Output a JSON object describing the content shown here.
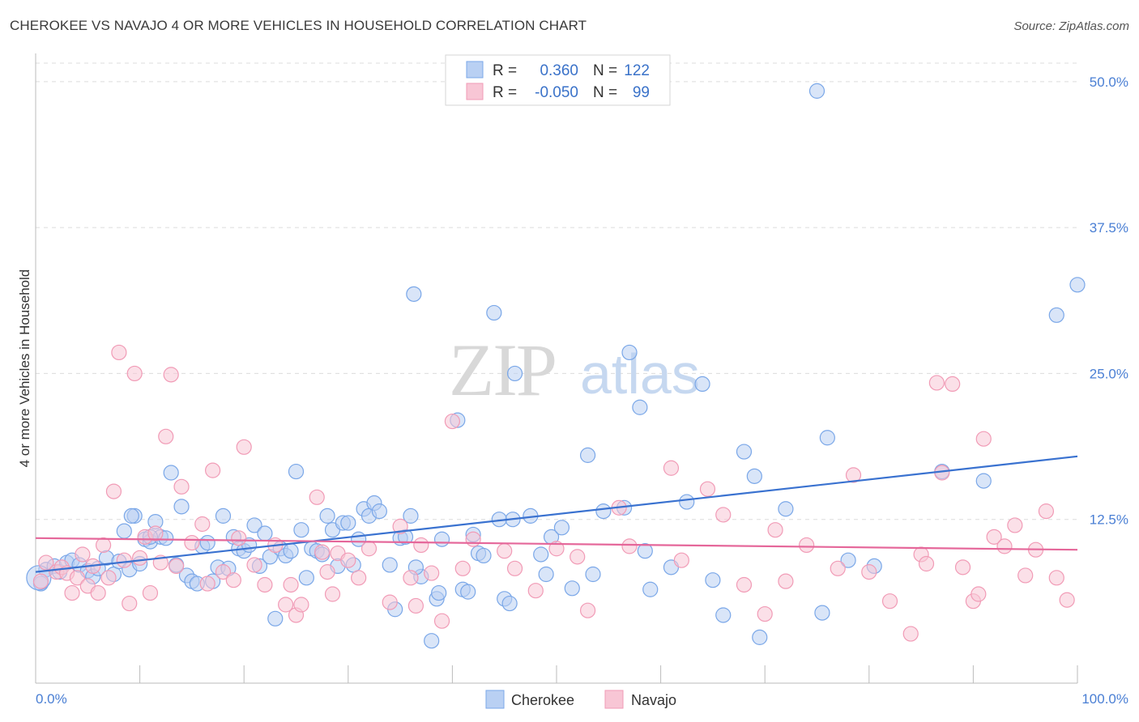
{
  "title": "CHEROKEE VS NAVAJO 4 OR MORE VEHICLES IN HOUSEHOLD CORRELATION CHART",
  "source": "Source: ZipAtlas.com",
  "watermark": {
    "part1": "ZIP",
    "part2": "atlas"
  },
  "legend_box": {
    "rows": [
      {
        "r_label": "R =",
        "r_value": "0.360",
        "n_label": "N =",
        "n_value": "122"
      },
      {
        "r_label": "R =",
        "r_value": "-0.050",
        "n_label": "N =",
        "n_value": "99"
      }
    ]
  },
  "chart_data": {
    "type": "scatter",
    "title": "CHEROKEE VS NAVAJO 4 OR MORE VEHICLES IN HOUSEHOLD CORRELATION CHART",
    "xlabel": "",
    "ylabel": "4 or more Vehicles in Household",
    "xlim": [
      0,
      100
    ],
    "ylim": [
      0,
      52
    ],
    "x_tick_labels": [
      "0.0%",
      "100.0%"
    ],
    "y_ticks": [
      12.5,
      25.0,
      37.5,
      50.0
    ],
    "y_tick_labels": [
      "12.5%",
      "25.0%",
      "37.5%",
      "50.0%"
    ],
    "grid": true,
    "legend_position": "bottom",
    "series": [
      {
        "name": "Cherokee",
        "color": "#7aa7e8",
        "fill": "#b9d0f3",
        "trend": {
          "x": [
            0,
            100
          ],
          "y": [
            8.0,
            17.9
          ]
        },
        "points": [
          [
            0.5,
            7.0
          ],
          [
            1.0,
            8.2
          ],
          [
            1.8,
            8.5
          ],
          [
            2.3,
            8.0
          ],
          [
            3.0,
            8.8
          ],
          [
            3.5,
            9.0
          ],
          [
            4.2,
            8.6
          ],
          [
            5.0,
            8.1
          ],
          [
            5.5,
            7.6
          ],
          [
            6.0,
            8.3
          ],
          [
            6.8,
            9.2
          ],
          [
            7.5,
            7.8
          ],
          [
            8.0,
            8.9
          ],
          [
            8.5,
            11.5
          ],
          [
            9.0,
            8.2
          ],
          [
            9.5,
            12.8
          ],
          [
            10.0,
            8.7
          ],
          [
            10.5,
            10.8
          ],
          [
            11.0,
            10.6
          ],
          [
            11.5,
            12.3
          ],
          [
            12.0,
            11.0
          ],
          [
            12.5,
            10.9
          ],
          [
            13.0,
            16.5
          ],
          [
            13.5,
            8.6
          ],
          [
            14.0,
            13.6
          ],
          [
            14.5,
            7.7
          ],
          [
            15.0,
            7.2
          ],
          [
            15.5,
            7.0
          ],
          [
            16.0,
            10.2
          ],
          [
            16.5,
            10.5
          ],
          [
            17.0,
            7.2
          ],
          [
            17.5,
            8.4
          ],
          [
            18.0,
            12.8
          ],
          [
            18.5,
            8.3
          ],
          [
            19.0,
            11.0
          ],
          [
            19.5,
            10.0
          ],
          [
            20.0,
            9.8
          ],
          [
            20.5,
            10.3
          ],
          [
            21.0,
            12.0
          ],
          [
            21.5,
            8.5
          ],
          [
            22.0,
            11.3
          ],
          [
            22.5,
            9.3
          ],
          [
            23.0,
            4.0
          ],
          [
            23.5,
            10.0
          ],
          [
            24.0,
            9.4
          ],
          [
            24.5,
            9.8
          ],
          [
            25.0,
            16.6
          ],
          [
            25.5,
            11.6
          ],
          [
            26.0,
            7.5
          ],
          [
            26.5,
            10.0
          ],
          [
            27.0,
            9.8
          ],
          [
            27.5,
            9.5
          ],
          [
            28.0,
            12.8
          ],
          [
            28.5,
            11.6
          ],
          [
            29.0,
            8.5
          ],
          [
            29.5,
            12.2
          ],
          [
            30.0,
            12.2
          ],
          [
            30.5,
            8.6
          ],
          [
            31.0,
            10.8
          ],
          [
            31.5,
            13.4
          ],
          [
            32.0,
            12.8
          ],
          [
            32.5,
            13.9
          ],
          [
            33.0,
            13.2
          ],
          [
            34.0,
            8.6
          ],
          [
            34.5,
            4.8
          ],
          [
            35.0,
            10.9
          ],
          [
            35.5,
            11.0
          ],
          [
            36.0,
            12.8
          ],
          [
            36.3,
            31.8
          ],
          [
            37.0,
            7.6
          ],
          [
            36.5,
            8.4
          ],
          [
            38.0,
            2.1
          ],
          [
            38.5,
            5.7
          ],
          [
            38.7,
            6.2
          ],
          [
            39.0,
            10.8
          ],
          [
            40.5,
            21.0
          ],
          [
            41.0,
            6.5
          ],
          [
            41.5,
            6.3
          ],
          [
            42.0,
            11.2
          ],
          [
            42.5,
            9.6
          ],
          [
            43.0,
            9.4
          ],
          [
            44.0,
            30.2
          ],
          [
            45.0,
            5.7
          ],
          [
            45.5,
            5.3
          ],
          [
            45.8,
            12.5
          ],
          [
            46.0,
            25.0
          ],
          [
            47.5,
            12.8
          ],
          [
            48.5,
            9.5
          ],
          [
            49.0,
            7.8
          ],
          [
            49.5,
            11.0
          ],
          [
            50.5,
            11.8
          ],
          [
            51.5,
            6.6
          ],
          [
            53.0,
            18.0
          ],
          [
            53.5,
            7.8
          ],
          [
            54.5,
            13.2
          ],
          [
            56.5,
            13.5
          ],
          [
            57.0,
            26.8
          ],
          [
            58.0,
            22.1
          ],
          [
            58.5,
            9.8
          ],
          [
            59.0,
            6.5
          ],
          [
            61.0,
            8.4
          ],
          [
            62.5,
            14.0
          ],
          [
            64.0,
            24.1
          ],
          [
            65.0,
            7.3
          ],
          [
            66.0,
            4.3
          ],
          [
            68.0,
            18.3
          ],
          [
            69.0,
            16.2
          ],
          [
            69.5,
            2.4
          ],
          [
            72.0,
            13.4
          ],
          [
            75.5,
            4.5
          ],
          [
            75.0,
            49.2
          ],
          [
            76.0,
            19.5
          ],
          [
            78.0,
            9.0
          ],
          [
            80.5,
            8.5
          ],
          [
            100.0,
            32.6
          ],
          [
            98.0,
            30.0
          ],
          [
            87.0,
            16.6
          ],
          [
            91.0,
            15.8
          ],
          [
            9.2,
            12.8
          ],
          [
            44.5,
            12.5
          ],
          [
            11.0,
            11.0
          ],
          [
            0.3,
            7.5
          ]
        ]
      },
      {
        "name": "Navajo",
        "color": "#f19bb6",
        "fill": "#f8c6d5",
        "trend": {
          "x": [
            0,
            100
          ],
          "y": [
            10.9,
            9.9
          ]
        },
        "points": [
          [
            0.5,
            7.2
          ],
          [
            1.0,
            8.8
          ],
          [
            2.0,
            8.0
          ],
          [
            2.5,
            8.4
          ],
          [
            3.0,
            7.9
          ],
          [
            3.5,
            6.2
          ],
          [
            4.0,
            7.5
          ],
          [
            4.5,
            9.5
          ],
          [
            5.0,
            6.8
          ],
          [
            5.5,
            8.5
          ],
          [
            6.0,
            6.2
          ],
          [
            6.5,
            10.3
          ],
          [
            7.0,
            7.5
          ],
          [
            7.5,
            14.9
          ],
          [
            8.0,
            26.8
          ],
          [
            8.5,
            9.0
          ],
          [
            9.0,
            5.3
          ],
          [
            9.5,
            25.0
          ],
          [
            10.0,
            9.2
          ],
          [
            10.5,
            11.0
          ],
          [
            11.0,
            6.2
          ],
          [
            11.5,
            11.3
          ],
          [
            12.0,
            8.8
          ],
          [
            12.5,
            19.6
          ],
          [
            13.0,
            24.9
          ],
          [
            13.5,
            8.5
          ],
          [
            14.0,
            15.3
          ],
          [
            15.0,
            10.5
          ],
          [
            16.0,
            12.1
          ],
          [
            16.5,
            7.0
          ],
          [
            17.0,
            16.7
          ],
          [
            18.0,
            8.0
          ],
          [
            19.0,
            7.3
          ],
          [
            19.5,
            10.9
          ],
          [
            20.0,
            18.7
          ],
          [
            21.0,
            8.6
          ],
          [
            22.0,
            6.9
          ],
          [
            23.0,
            10.3
          ],
          [
            24.0,
            5.2
          ],
          [
            24.5,
            6.9
          ],
          [
            25.0,
            4.3
          ],
          [
            25.5,
            5.2
          ],
          [
            27.0,
            14.4
          ],
          [
            27.5,
            9.7
          ],
          [
            28.0,
            8.0
          ],
          [
            28.5,
            6.1
          ],
          [
            29.0,
            9.6
          ],
          [
            30.0,
            9.0
          ],
          [
            31.0,
            7.5
          ],
          [
            32.0,
            10.0
          ],
          [
            34.0,
            5.4
          ],
          [
            35.0,
            11.9
          ],
          [
            36.0,
            7.5
          ],
          [
            36.5,
            5.1
          ],
          [
            37.0,
            10.3
          ],
          [
            38.0,
            7.9
          ],
          [
            39.0,
            3.8
          ],
          [
            40.0,
            20.9
          ],
          [
            41.0,
            8.3
          ],
          [
            42.0,
            10.8
          ],
          [
            45.0,
            9.8
          ],
          [
            46.0,
            8.3
          ],
          [
            48.0,
            6.4
          ],
          [
            50.0,
            10.0
          ],
          [
            52.0,
            9.3
          ],
          [
            53.0,
            4.7
          ],
          [
            56.0,
            13.5
          ],
          [
            57.0,
            10.2
          ],
          [
            61.0,
            16.9
          ],
          [
            62.0,
            9.0
          ],
          [
            64.5,
            15.1
          ],
          [
            66.0,
            12.9
          ],
          [
            68.0,
            6.9
          ],
          [
            70.0,
            4.4
          ],
          [
            71.0,
            11.6
          ],
          [
            72.0,
            7.2
          ],
          [
            74.0,
            10.3
          ],
          [
            77.0,
            8.3
          ],
          [
            78.5,
            16.3
          ],
          [
            80.0,
            8.0
          ],
          [
            82.0,
            5.5
          ],
          [
            84.0,
            2.7
          ],
          [
            85.0,
            9.5
          ],
          [
            85.5,
            8.7
          ],
          [
            86.5,
            24.2
          ],
          [
            87.0,
            16.5
          ],
          [
            88.0,
            24.1
          ],
          [
            89.0,
            8.4
          ],
          [
            90.0,
            5.5
          ],
          [
            90.5,
            6.1
          ],
          [
            91.0,
            19.4
          ],
          [
            92.0,
            11.0
          ],
          [
            93.0,
            10.2
          ],
          [
            94.0,
            12.0
          ],
          [
            95.0,
            7.7
          ],
          [
            96.0,
            9.9
          ],
          [
            97.0,
            13.2
          ],
          [
            98.0,
            7.5
          ],
          [
            99.0,
            5.6
          ]
        ]
      }
    ]
  }
}
